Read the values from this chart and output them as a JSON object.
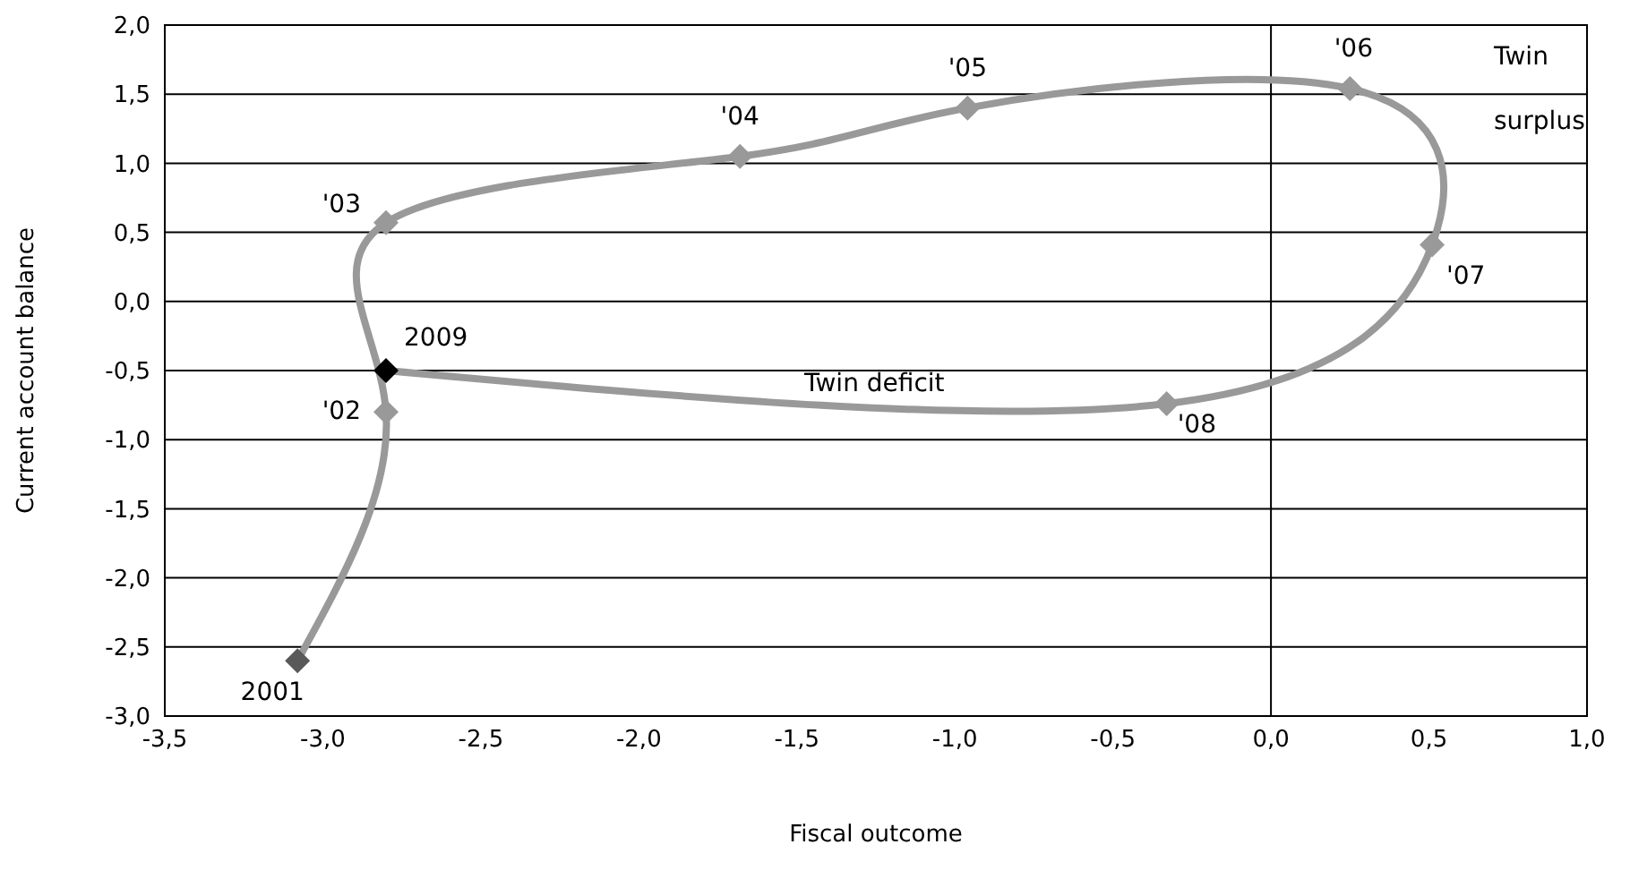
{
  "chart_data": {
    "type": "line",
    "xlabel": "Fiscal outcome",
    "ylabel": "Current account balance",
    "x": [
      -3.08,
      -2.8,
      -2.8,
      -1.68,
      -0.96,
      0.25,
      0.51,
      -0.33,
      -2.8
    ],
    "series": [
      {
        "color": "#999999",
        "colors": [
          "#595959",
          "#999999",
          "#999999",
          "#999999",
          "#999999",
          "#999999",
          "#999999",
          "#999999",
          "#000000"
        ],
        "values": [
          -2.6,
          -0.8,
          0.57,
          1.05,
          1.4,
          1.54,
          0.41,
          -0.74,
          -0.5
        ]
      }
    ],
    "xlim": [
      -3.5,
      1.0
    ],
    "ylim": [
      -3.0,
      2.0
    ],
    "xticks": [
      {
        "value": -3.5,
        "label": "-3,5"
      },
      {
        "value": -3,
        "label": "-3,0"
      },
      {
        "value": -2.5,
        "label": "-2,5"
      },
      {
        "value": -2,
        "label": "-2,0"
      },
      {
        "value": -1.5,
        "label": "-1,5"
      },
      {
        "value": -1,
        "label": "-1,0"
      },
      {
        "value": -0.5,
        "label": "-0,5"
      },
      {
        "value": 0,
        "label": "0,0"
      },
      {
        "value": 0.5,
        "label": "0,5"
      },
      {
        "value": 1,
        "label": "1,0"
      }
    ],
    "yticks": [
      {
        "value": -3,
        "label": "-3,0"
      },
      {
        "value": -2.5,
        "label": "-2,5"
      },
      {
        "value": -2,
        "label": "-2,0"
      },
      {
        "value": -1.5,
        "label": "-1,5"
      },
      {
        "value": -1,
        "label": "-1,0"
      },
      {
        "value": -0.5,
        "label": "-0,5"
      },
      {
        "value": 0,
        "label": "0,0"
      },
      {
        "value": 0.5,
        "label": "0,5"
      },
      {
        "value": 1,
        "label": "1,0"
      },
      {
        "value": 1.5,
        "label": "1,5"
      },
      {
        "value": 2,
        "label": "2,0"
      }
    ],
    "grid": "y",
    "marker": "diamond",
    "line_style": "solid",
    "ref_lines": [
      {
        "axis": "x",
        "value": 0,
        "color": "#000000"
      }
    ],
    "annotations": [
      {
        "text": "2001",
        "x": -3.08,
        "y": -2.6
      },
      {
        "text": "'02",
        "x": -2.8,
        "y": -0.8
      },
      {
        "text": "'03",
        "x": -2.8,
        "y": 0.57
      },
      {
        "text": "'04",
        "x": -1.68,
        "y": 1.05
      },
      {
        "text": "'05",
        "x": -0.96,
        "y": 1.4
      },
      {
        "text": "'06",
        "x": 0.25,
        "y": 1.54
      },
      {
        "text": "'07",
        "x": 0.51,
        "y": 0.41
      },
      {
        "text": "'08",
        "x": -0.33,
        "y": -0.74
      },
      {
        "text": "2009",
        "x": -2.8,
        "y": -0.5
      },
      "Twin surplus",
      "Twin deficit"
    ]
  }
}
